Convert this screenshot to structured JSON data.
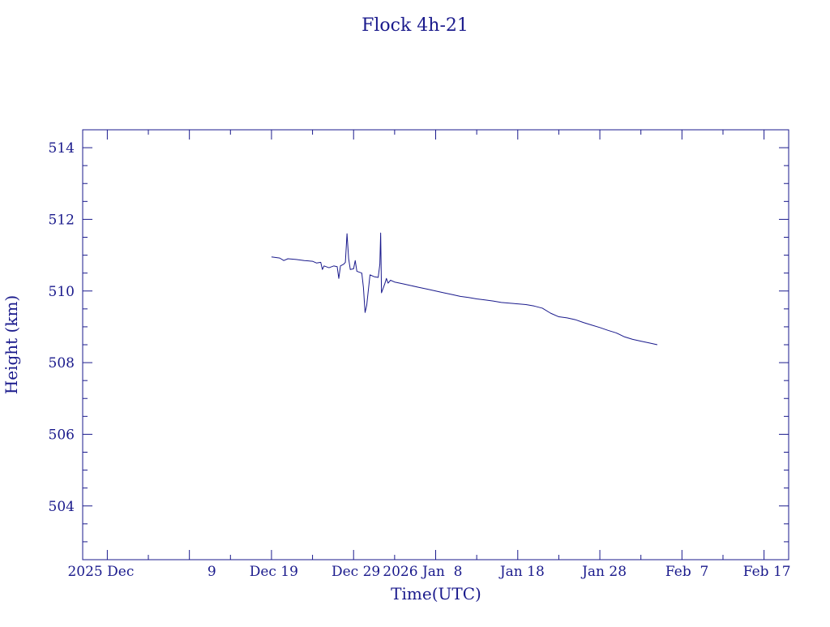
{
  "colors": {
    "ink": "#1a1a8c",
    "background": "#ffffff"
  },
  "chart_data": {
    "type": "line",
    "title": "Flock 4h-21",
    "xlabel": "Time(UTC)",
    "ylabel": "Height (km)",
    "xlim": [
      "2025-11-26",
      "2026-02-20"
    ],
    "ylim": [
      502.5,
      514.5
    ],
    "y_ticks": [
      504,
      506,
      508,
      510,
      512,
      514
    ],
    "y_tick_labels": [
      "504",
      "506",
      "508",
      "510",
      "512",
      "514"
    ],
    "x_ticks": [
      {
        "date": "2025-11-29",
        "label": "2025 Dec"
      },
      {
        "date": "2025-12-09",
        "label": "9"
      },
      {
        "date": "2025-12-19",
        "label": "Dec 19"
      },
      {
        "date": "2025-12-29",
        "label": "Dec 29"
      },
      {
        "date": "2026-01-08",
        "label": "2026 Jan  8"
      },
      {
        "date": "2026-01-18",
        "label": "Jan 18"
      },
      {
        "date": "2026-01-28",
        "label": "Jan 28"
      },
      {
        "date": "2026-02-07",
        "label": "Feb  7"
      },
      {
        "date": "2026-02-17",
        "label": "Feb 17"
      }
    ],
    "x_minor_step_days": 5,
    "y_minor_step": 0.5,
    "grid": false,
    "series": [
      {
        "values": [
          [
            "2025-12-19",
            510.95
          ],
          [
            "2025-12-20",
            510.92
          ],
          [
            "2025-12-20.5",
            510.85
          ],
          [
            "2025-12-21",
            510.9
          ],
          [
            "2025-12-22",
            510.88
          ],
          [
            "2025-12-23",
            510.85
          ],
          [
            "2025-12-24",
            510.83
          ],
          [
            "2025-12-24.5",
            510.78
          ],
          [
            "2025-12-25",
            510.8
          ],
          [
            "2025-12-25.2",
            510.6
          ],
          [
            "2025-12-25.4",
            510.7
          ],
          [
            "2025-12-26",
            510.65
          ],
          [
            "2025-12-26.6",
            510.7
          ],
          [
            "2025-12-27",
            510.68
          ],
          [
            "2025-12-27.2",
            510.35
          ],
          [
            "2025-12-27.4",
            510.7
          ],
          [
            "2025-12-27.8",
            510.75
          ],
          [
            "2025-12-28",
            510.8
          ],
          [
            "2025-12-28.2",
            511.6
          ],
          [
            "2025-12-28.4",
            510.9
          ],
          [
            "2025-12-28.6",
            510.6
          ],
          [
            "2025-12-29",
            510.62
          ],
          [
            "2025-12-29.2",
            510.85
          ],
          [
            "2025-12-29.4",
            510.55
          ],
          [
            "2025-12-30",
            510.5
          ],
          [
            "2025-12-30.2",
            510.1
          ],
          [
            "2025-12-30.4",
            509.4
          ],
          [
            "2025-12-30.6",
            509.6
          ],
          [
            "2025-12-31",
            510.45
          ],
          [
            "2025-12-31.5",
            510.4
          ],
          [
            "2026-01-01",
            510.38
          ],
          [
            "2026-01-01.2",
            510.75
          ],
          [
            "2026-01-01.3",
            511.62
          ],
          [
            "2026-01-01.4",
            509.95
          ],
          [
            "2026-01-01.8",
            510.2
          ],
          [
            "2026-01-02",
            510.35
          ],
          [
            "2026-01-02.2",
            510.22
          ],
          [
            "2026-01-02.5",
            510.3
          ],
          [
            "2026-01-03",
            510.25
          ],
          [
            "2026-01-04",
            510.2
          ],
          [
            "2026-01-05",
            510.15
          ],
          [
            "2026-01-06",
            510.1
          ],
          [
            "2026-01-07",
            510.05
          ],
          [
            "2026-01-08",
            510.0
          ],
          [
            "2026-01-09",
            509.95
          ],
          [
            "2026-01-10",
            509.9
          ],
          [
            "2026-01-11",
            509.85
          ],
          [
            "2026-01-12",
            509.82
          ],
          [
            "2026-01-13",
            509.78
          ],
          [
            "2026-01-14",
            509.75
          ],
          [
            "2026-01-15",
            509.72
          ],
          [
            "2026-01-16",
            509.68
          ],
          [
            "2026-01-17",
            509.66
          ],
          [
            "2026-01-18",
            509.64
          ],
          [
            "2026-01-19",
            509.62
          ],
          [
            "2026-01-20",
            509.58
          ],
          [
            "2026-01-21",
            509.52
          ],
          [
            "2026-01-22",
            509.38
          ],
          [
            "2026-01-23",
            509.28
          ],
          [
            "2026-01-24",
            509.25
          ],
          [
            "2026-01-25",
            509.2
          ],
          [
            "2026-01-26",
            509.12
          ],
          [
            "2026-01-27",
            509.05
          ],
          [
            "2026-01-28",
            508.98
          ],
          [
            "2026-01-29",
            508.9
          ],
          [
            "2026-01-30",
            508.83
          ],
          [
            "2026-01-31",
            508.72
          ],
          [
            "2026-02-01",
            508.65
          ],
          [
            "2026-02-02",
            508.6
          ],
          [
            "2026-02-03",
            508.55
          ],
          [
            "2026-02-04",
            508.5
          ]
        ]
      }
    ]
  }
}
